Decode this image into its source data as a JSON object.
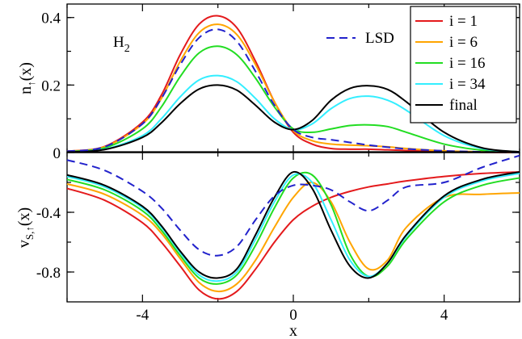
{
  "chart_data": [
    {
      "type": "line",
      "panel": "top",
      "ylabel_main": "n",
      "ylabel_sub": "↑",
      "ylabel_arg": "(x)",
      "annotation_main": "H",
      "annotation_sub": "2",
      "xlim": [
        -6,
        6
      ],
      "ylim": [
        0,
        0.44
      ],
      "yticks": [
        0,
        0.2,
        0.4
      ],
      "ytick_labels": [
        "0",
        "0.2",
        "0.4"
      ],
      "grid": false,
      "legend_position": "top-right",
      "series": [
        {
          "name": "i = 1",
          "color": "#e41a1c",
          "dash": false,
          "x": [
            -6,
            -5,
            -4,
            -3.5,
            -3,
            -2.5,
            -2,
            -1.5,
            -1,
            -0.5,
            0,
            0.5,
            1,
            1.5,
            2,
            2.5,
            3,
            4,
            5,
            6
          ],
          "y": [
            0.004,
            0.018,
            0.09,
            0.17,
            0.29,
            0.38,
            0.405,
            0.37,
            0.27,
            0.15,
            0.06,
            0.025,
            0.012,
            0.01,
            0.01,
            0.008,
            0.006,
            0.003,
            0.001,
            0
          ]
        },
        {
          "name": "i = 6",
          "color": "#ffa500",
          "dash": false,
          "x": [
            -6,
            -5,
            -4,
            -3.5,
            -3,
            -2.5,
            -2,
            -1.5,
            -1,
            -0.5,
            0,
            0.5,
            1,
            1.5,
            2,
            2.5,
            3,
            4,
            5,
            6
          ],
          "y": [
            0.004,
            0.017,
            0.085,
            0.16,
            0.27,
            0.355,
            0.38,
            0.35,
            0.26,
            0.15,
            0.065,
            0.035,
            0.025,
            0.022,
            0.02,
            0.017,
            0.012,
            0.005,
            0.002,
            0
          ]
        },
        {
          "name": "i = 16",
          "color": "#22dd22",
          "dash": false,
          "x": [
            -6,
            -5,
            -4,
            -3.5,
            -3,
            -2.5,
            -2,
            -1.5,
            -1,
            -0.5,
            0,
            0.5,
            1,
            1.5,
            2,
            2.5,
            3,
            4,
            5,
            6
          ],
          "y": [
            0.003,
            0.014,
            0.07,
            0.135,
            0.225,
            0.295,
            0.315,
            0.29,
            0.22,
            0.135,
            0.07,
            0.06,
            0.07,
            0.08,
            0.082,
            0.077,
            0.06,
            0.025,
            0.007,
            0.001
          ]
        },
        {
          "name": "i = 34",
          "color": "#33eeff",
          "dash": false,
          "x": [
            -6,
            -5,
            -4,
            -3.5,
            -3,
            -2.5,
            -2,
            -1.5,
            -1,
            -0.5,
            0,
            0.5,
            1,
            1.5,
            2,
            2.5,
            3,
            4,
            5,
            6
          ],
          "y": [
            0.002,
            0.01,
            0.05,
            0.1,
            0.165,
            0.215,
            0.228,
            0.21,
            0.16,
            0.1,
            0.068,
            0.085,
            0.13,
            0.16,
            0.167,
            0.155,
            0.125,
            0.05,
            0.012,
            0.002
          ]
        },
        {
          "name": "final",
          "color": "#000000",
          "dash": false,
          "x": [
            -6,
            -5,
            -4,
            -3.5,
            -3,
            -2.5,
            -2,
            -1.5,
            -1,
            -0.5,
            0,
            0.5,
            1,
            1.5,
            2,
            2.5,
            3,
            4,
            5,
            6
          ],
          "y": [
            0.002,
            0.009,
            0.045,
            0.088,
            0.145,
            0.188,
            0.2,
            0.185,
            0.14,
            0.09,
            0.068,
            0.095,
            0.155,
            0.19,
            0.198,
            0.187,
            0.15,
            0.06,
            0.014,
            0.002
          ]
        },
        {
          "name": "LSD",
          "color": "#2222cc",
          "dash": true,
          "x": [
            -6,
            -5,
            -4,
            -3.5,
            -3,
            -2.5,
            -2,
            -1.5,
            -1,
            -0.5,
            0,
            0.5,
            1,
            1.5,
            2,
            2.5,
            3,
            4,
            5,
            6
          ],
          "y": [
            0.004,
            0.017,
            0.085,
            0.16,
            0.26,
            0.34,
            0.365,
            0.33,
            0.24,
            0.14,
            0.068,
            0.045,
            0.038,
            0.03,
            0.022,
            0.016,
            0.011,
            0.005,
            0.002,
            0
          ]
        }
      ]
    },
    {
      "type": "line",
      "panel": "bottom",
      "ylabel_main": "v",
      "ylabel_sub": "S,↑",
      "ylabel_arg": "(x)",
      "xlabel": "x",
      "xlim": [
        -6,
        6
      ],
      "ylim": [
        -1.0,
        0
      ],
      "xticks": [
        -4,
        0,
        4
      ],
      "xtick_labels": [
        "-4",
        "0",
        "4"
      ],
      "yticks": [
        -0.4,
        -0.8
      ],
      "ytick_labels": [
        "-0.4",
        "-0.8"
      ],
      "grid": false,
      "series": [
        {
          "name": "i = 1",
          "color": "#e41a1c",
          "dash": false,
          "x": [
            -6,
            -5,
            -4,
            -3.5,
            -3,
            -2.5,
            -2,
            -1.5,
            -1,
            -0.5,
            0,
            0.5,
            1,
            1.5,
            2,
            2.5,
            3,
            4,
            5,
            6
          ],
          "y": [
            -0.24,
            -0.32,
            -0.47,
            -0.6,
            -0.76,
            -0.92,
            -0.98,
            -0.93,
            -0.78,
            -0.6,
            -0.45,
            -0.36,
            -0.3,
            -0.26,
            -0.23,
            -0.21,
            -0.19,
            -0.16,
            -0.14,
            -0.13
          ]
        },
        {
          "name": "i = 6",
          "color": "#ffa500",
          "dash": false,
          "x": [
            -6,
            -5,
            -4,
            -3.5,
            -3,
            -2.5,
            -2,
            -1.5,
            -1,
            -0.5,
            0,
            0.5,
            1,
            1.5,
            2,
            2.5,
            3,
            4,
            5,
            6
          ],
          "y": [
            -0.21,
            -0.28,
            -0.42,
            -0.54,
            -0.71,
            -0.87,
            -0.93,
            -0.88,
            -0.72,
            -0.5,
            -0.3,
            -0.2,
            -0.33,
            -0.6,
            -0.78,
            -0.72,
            -0.5,
            -0.3,
            -0.28,
            -0.27
          ]
        },
        {
          "name": "i = 16",
          "color": "#22dd22",
          "dash": false,
          "x": [
            -6,
            -5,
            -4,
            -3.5,
            -3,
            -2.5,
            -2,
            -1.5,
            -1,
            -0.5,
            0,
            0.5,
            1,
            1.5,
            2,
            2.5,
            3,
            4,
            5,
            6
          ],
          "y": [
            -0.18,
            -0.25,
            -0.39,
            -0.52,
            -0.69,
            -0.84,
            -0.88,
            -0.82,
            -0.62,
            -0.37,
            -0.17,
            -0.15,
            -0.35,
            -0.68,
            -0.83,
            -0.76,
            -0.58,
            -0.33,
            -0.22,
            -0.17
          ]
        },
        {
          "name": "i = 34",
          "color": "#33eeff",
          "dash": false,
          "x": [
            -6,
            -5,
            -4,
            -3.5,
            -3,
            -2.5,
            -2,
            -1.5,
            -1,
            -0.5,
            0,
            0.5,
            1,
            1.5,
            2,
            2.5,
            3,
            4,
            5,
            6
          ],
          "y": [
            -0.16,
            -0.23,
            -0.37,
            -0.5,
            -0.67,
            -0.82,
            -0.86,
            -0.8,
            -0.58,
            -0.33,
            -0.15,
            -0.2,
            -0.45,
            -0.72,
            -0.83,
            -0.74,
            -0.56,
            -0.3,
            -0.19,
            -0.14
          ]
        },
        {
          "name": "final",
          "color": "#000000",
          "dash": false,
          "x": [
            -6,
            -5,
            -4,
            -3.5,
            -3,
            -2.5,
            -2,
            -1.5,
            -1,
            -0.5,
            0,
            0.5,
            1,
            1.5,
            2,
            2.5,
            3,
            4,
            5,
            6
          ],
          "y": [
            -0.15,
            -0.22,
            -0.36,
            -0.49,
            -0.66,
            -0.8,
            -0.84,
            -0.78,
            -0.55,
            -0.3,
            -0.13,
            -0.24,
            -0.52,
            -0.76,
            -0.84,
            -0.74,
            -0.55,
            -0.29,
            -0.18,
            -0.13
          ]
        },
        {
          "name": "LSD",
          "color": "#2222cc",
          "dash": true,
          "x": [
            -6,
            -5,
            -4,
            -3.5,
            -3,
            -2.5,
            -2,
            -1.5,
            -1,
            -0.5,
            0,
            0.5,
            1,
            1.5,
            2,
            2.5,
            3,
            4,
            5,
            6
          ],
          "y": [
            -0.05,
            -0.12,
            -0.26,
            -0.37,
            -0.52,
            -0.65,
            -0.69,
            -0.63,
            -0.45,
            -0.29,
            -0.22,
            -0.22,
            -0.25,
            -0.33,
            -0.39,
            -0.32,
            -0.23,
            -0.2,
            -0.1,
            -0.02
          ]
        }
      ]
    }
  ]
}
